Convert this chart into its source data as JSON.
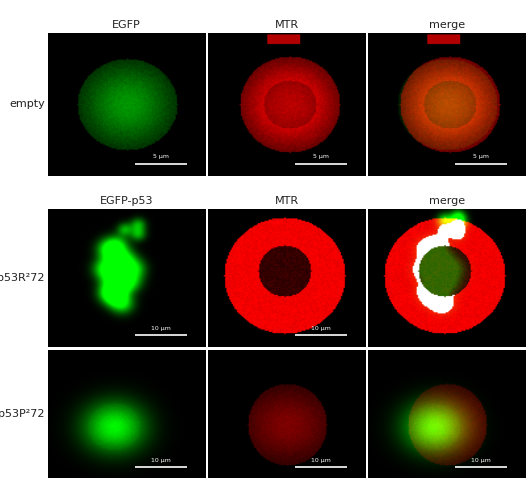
{
  "col_labels_row0": [
    "EGFP",
    "MTR",
    "merge"
  ],
  "col_labels_row1": [
    "EGFP-p53",
    "MTR",
    "merge"
  ],
  "row_labels": [
    "empty",
    "p53R²72",
    "p53P²72"
  ],
  "row_label_fontsize": 8,
  "col_label_fontsize": 8,
  "scalebar_5um": "5 μm",
  "scalebar_10um": "10 μm",
  "figure_bg": "#ffffff",
  "label_color": "#222222"
}
